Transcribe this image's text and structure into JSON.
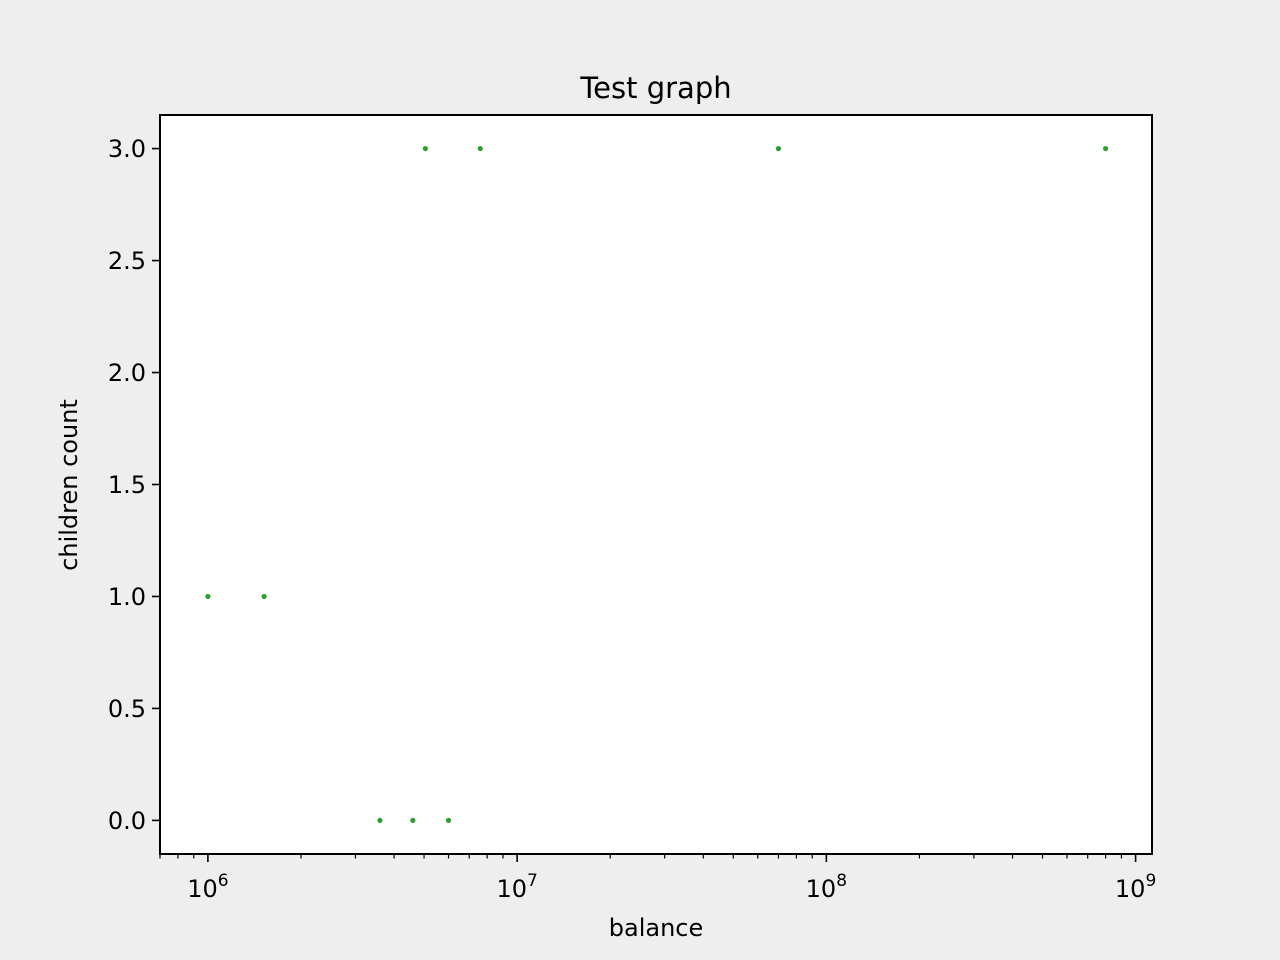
{
  "chart_data": {
    "type": "scatter",
    "title": "Test graph",
    "xlabel": "balance",
    "ylabel": "children count",
    "x_scale": "log",
    "xlim": [
      700000,
      1130000000
    ],
    "ylim": [
      -0.15,
      3.15
    ],
    "x_ticks": [
      {
        "value": 1000000,
        "base": "10",
        "exp": "6"
      },
      {
        "value": 10000000,
        "base": "10",
        "exp": "7"
      },
      {
        "value": 100000000,
        "base": "10",
        "exp": "8"
      },
      {
        "value": 1000000000,
        "base": "10",
        "exp": "9"
      }
    ],
    "y_ticks": [
      {
        "value": 0.0,
        "label": "0.0"
      },
      {
        "value": 0.5,
        "label": "0.5"
      },
      {
        "value": 1.0,
        "label": "1.0"
      },
      {
        "value": 1.5,
        "label": "1.5"
      },
      {
        "value": 2.0,
        "label": "2.0"
      },
      {
        "value": 2.5,
        "label": "2.5"
      },
      {
        "value": 3.0,
        "label": "3.0"
      }
    ],
    "grid": false,
    "marker_color": "#2ca02c",
    "points": [
      {
        "x": 1000000,
        "y": 1
      },
      {
        "x": 1520000,
        "y": 1
      },
      {
        "x": 3600000,
        "y": 0
      },
      {
        "x": 4600000,
        "y": 0
      },
      {
        "x": 6000000,
        "y": 0
      },
      {
        "x": 5050000,
        "y": 3
      },
      {
        "x": 7600000,
        "y": 3
      },
      {
        "x": 70000000,
        "y": 3
      },
      {
        "x": 800000000,
        "y": 3
      }
    ]
  }
}
